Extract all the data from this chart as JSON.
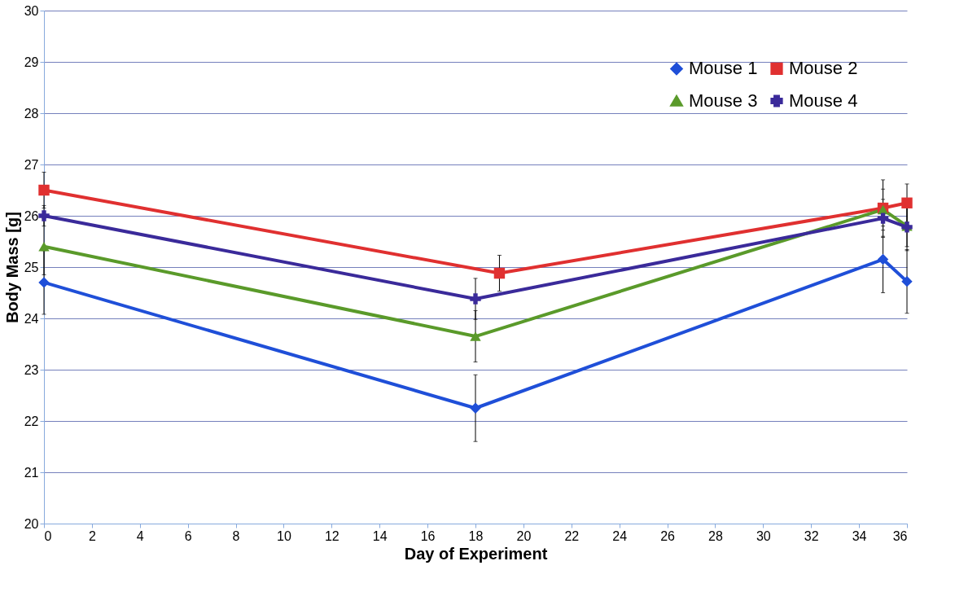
{
  "chart_data": {
    "type": "line",
    "xlabel": "Day of Experiment",
    "ylabel": "Body Mass [g]",
    "xlim": [
      0,
      36
    ],
    "xticks": [
      0,
      2,
      4,
      6,
      8,
      10,
      12,
      14,
      16,
      18,
      20,
      22,
      24,
      26,
      28,
      30,
      32,
      34,
      36
    ],
    "ylim": [
      20,
      30
    ],
    "yticks": [
      20,
      21,
      22,
      23,
      24,
      25,
      26,
      27,
      28,
      29,
      30
    ],
    "grid": "y",
    "legend": "top right",
    "line_style": "solid",
    "series": [
      {
        "name": "Mouse 1",
        "color": "#1f4fd8",
        "marker": "diamond",
        "x": [
          0,
          18,
          35,
          36
        ],
        "values": [
          24.7,
          22.25,
          25.15,
          24.72
        ],
        "errors": [
          0.62,
          0.65,
          0.65,
          0.62
        ]
      },
      {
        "name": "Mouse 2",
        "color": "#e03030",
        "marker": "square",
        "x": [
          0,
          19,
          35,
          36
        ],
        "values": [
          26.5,
          24.88,
          26.15,
          26.25
        ],
        "errors": [
          0.35,
          0.35,
          0.55,
          0.37
        ]
      },
      {
        "name": "Mouse 3",
        "color": "#5a9a2a",
        "marker": "triangle",
        "x": [
          0,
          18,
          35,
          36
        ],
        "values": [
          25.4,
          23.65,
          26.12,
          25.8
        ],
        "errors": [
          0.55,
          0.5,
          0.4,
          0.4
        ]
      },
      {
        "name": "Mouse 4",
        "color": "#3a2a9a",
        "marker": "cross",
        "x": [
          0,
          18,
          35,
          36
        ],
        "values": [
          26.0,
          24.38,
          25.95,
          25.78
        ],
        "errors": [
          0.2,
          0.4,
          0.37,
          0.46
        ]
      }
    ]
  }
}
